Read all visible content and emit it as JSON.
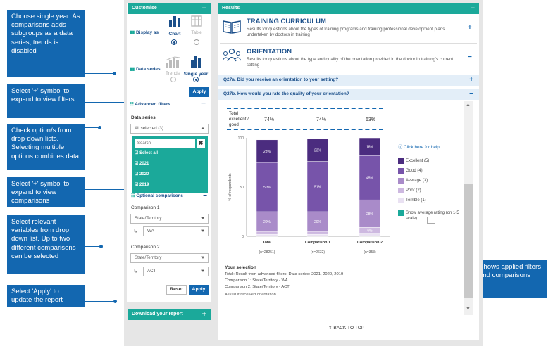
{
  "callouts": [
    "Choose single year. As comparisons adds subgroups as a data series, trends is disabled",
    "Select '+' symbol to expand to view filters",
    "Check option/s from drop-down lists. Selecting multiple options combines data",
    "Select '+' symbol to expand to view comparisons",
    "Select relevant variables from drop down list. Up to two different comparisons can be selected",
    "Select 'Apply' to update the report",
    "Shows applied filters and comparisons"
  ],
  "customise": {
    "title": "Customise",
    "toggle": "−",
    "display_as_label": "Display as",
    "chart_label": "Chart",
    "table_label": "Table",
    "data_series_label": "Data series",
    "trends_label": "Trends",
    "single_year_label": "Single year",
    "apply_label": "Apply",
    "advanced_filters_label": "Advanced filters",
    "advanced_toggle": "−",
    "data_series_heading": "Data series",
    "data_series_value": "All selected (3)",
    "search_placeholder": "Search",
    "options": [
      "Select all",
      "2021",
      "2020",
      "2019"
    ],
    "optional_comparisons_label": "Optional comparisons",
    "optional_toggle": "−",
    "comparison1_label": "Comparison 1",
    "comparison1_value": "State/Territory",
    "comparison1_sub": "WA",
    "comparison2_label": "Comparison 2",
    "comparison2_value": "State/Territory",
    "comparison2_sub": "ACT",
    "reset_label": "Reset",
    "apply2_label": "Apply"
  },
  "download": {
    "label": "Download your report",
    "toggle": "+"
  },
  "results": {
    "title": "Results",
    "toggle": "−",
    "training_title": "TRAINING CURRICULUM",
    "training_desc": "Results for questions about the types of training programs and training/professional development plans undertaken by doctors in training",
    "training_toggle": "+",
    "orientation_title": "ORIENTATION",
    "orientation_desc": "Results for questions about the type and quality of the orientation provided in the doctor in training's current setting",
    "orientation_toggle": "−",
    "q27a": "Q27a. Did you receive an orientation to your setting?",
    "q27a_toggle": "+",
    "q27b": "Q27b. How would you rate the quality of your orientation?",
    "q27b_toggle": "−",
    "total_label": "Total excellent / good",
    "totals": [
      "74%",
      "74%",
      "63%"
    ],
    "click_help": "Click here for help",
    "selection_heading": "Your selection",
    "selection_lines": [
      "Total: Result from advanced filters:  Data series: 2021, 2020, 2019",
      "Comparison 1: State/Territory - WA",
      "Comparison 2: State/Territory - ACT"
    ],
    "asked_note": "Asked if received orientation",
    "back_to_top": "BACK TO TOP",
    "show_avg": "Show average rating (on 1-5 scale)"
  },
  "chart_data": {
    "type": "bar",
    "stacked": true,
    "categories": [
      "Total",
      "Comparison 1",
      "Comparison 2"
    ],
    "n_labels": [
      "(n=28251)",
      "(n=2632)",
      "(n=353)"
    ],
    "ylabel": "% of respondents",
    "ylim": [
      0,
      100
    ],
    "yticks": [
      0,
      50,
      100
    ],
    "series": [
      {
        "name": "Terrible (1)",
        "color": "#e9e1f2",
        "values": [
          2,
          2,
          3
        ],
        "labels": [
          "",
          "",
          ""
        ]
      },
      {
        "name": "Poor (2)",
        "color": "#cdb8e0",
        "values": [
          3,
          3,
          6
        ],
        "labels": [
          "",
          "",
          "6%"
        ]
      },
      {
        "name": "Average (3)",
        "color": "#a98bc9",
        "values": [
          20,
          20,
          28
        ],
        "labels": [
          "20%",
          "20%",
          "28%"
        ]
      },
      {
        "name": "Good (4)",
        "color": "#7754aa",
        "values": [
          50,
          51,
          45
        ],
        "labels": [
          "50%",
          "51%",
          "45%"
        ]
      },
      {
        "name": "Excellent (5)",
        "color": "#4b2c7f",
        "values": [
          23,
          23,
          18
        ],
        "labels": [
          "23%",
          "23%",
          "18%"
        ]
      }
    ],
    "legend_position": "right"
  }
}
